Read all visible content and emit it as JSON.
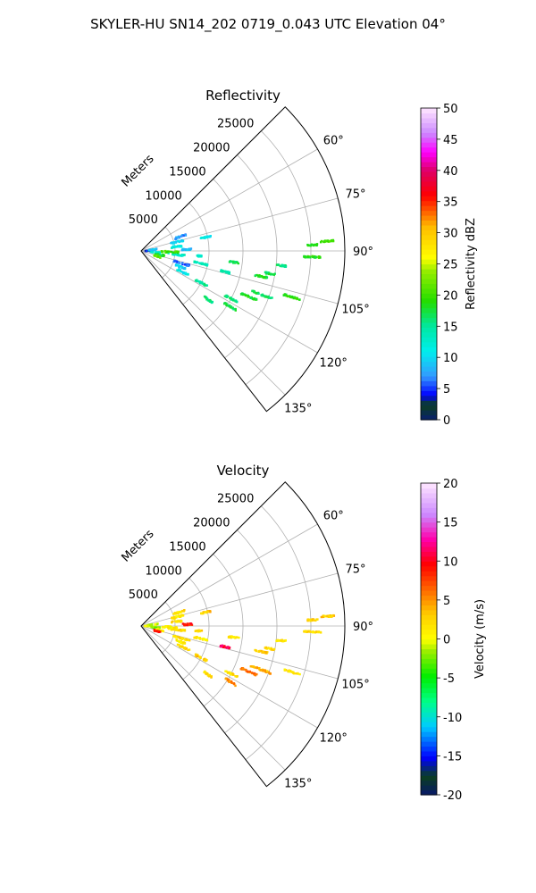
{
  "figure": {
    "suptitle": "SKYLER-HU  SN14_202  0719_0.043 UTC Elevation 04°"
  },
  "chart_data": [
    {
      "type": "heatmap",
      "subtype": "polar-sector",
      "title": "Reflectivity",
      "rlabel": "Meters",
      "r_ticks": [
        "5000",
        "10000",
        "15000",
        "20000",
        "25000"
      ],
      "r_tick_values": [
        5000,
        10000,
        15000,
        20000,
        25000
      ],
      "rlim": [
        0,
        30000
      ],
      "theta_ticks": [
        "60°",
        "75°",
        "90°",
        "105°",
        "120°",
        "135°"
      ],
      "theta_tick_values": [
        60,
        75,
        90,
        105,
        120,
        135
      ],
      "theta_range_deg": [
        45,
        142
      ],
      "grid": true,
      "colorbar": {
        "label": "Reflectivity dBZ",
        "ticks": [
          "0",
          "5",
          "10",
          "15",
          "20",
          "25",
          "30",
          "35",
          "40",
          "45",
          "50"
        ],
        "range": [
          0,
          50
        ],
        "colormap": "NWSRef"
      },
      "clusters": [
        {
          "az": 87,
          "r": [
            26500,
            28500
          ],
          "v": 20
        },
        {
          "az": 92,
          "r": [
            24000,
            26500
          ],
          "v": 19
        },
        {
          "az": 88,
          "r": [
            24500,
            26000
          ],
          "v": 18
        },
        {
          "az": 100,
          "r": [
            18500,
            20000
          ],
          "v": 17
        },
        {
          "az": 102,
          "r": [
            17000,
            19000
          ],
          "v": 18
        },
        {
          "az": 96,
          "r": [
            20000,
            21500
          ],
          "v": 16
        },
        {
          "az": 107,
          "r": [
            22000,
            24500
          ],
          "v": 19
        },
        {
          "az": 110,
          "r": [
            17000,
            20500
          ],
          "v": 17
        },
        {
          "az": 113,
          "r": [
            16000,
            18500
          ],
          "v": 18
        },
        {
          "az": 118,
          "r": [
            14000,
            16000
          ],
          "v": 16
        },
        {
          "az": 122,
          "r": [
            14500,
            16500
          ],
          "v": 17
        },
        {
          "az": 126,
          "r": [
            11500,
            13000
          ],
          "v": 16
        },
        {
          "az": 102,
          "r": [
            8000,
            10000
          ],
          "v": 14
        },
        {
          "az": 107,
          "r": [
            5000,
            7500
          ],
          "v": 6
        },
        {
          "az": 112,
          "r": [
            5500,
            7000
          ],
          "v": 10
        },
        {
          "az": 117,
          "r": [
            6000,
            8000
          ],
          "v": 11
        },
        {
          "az": 118,
          "r": [
            9000,
            11000
          ],
          "v": 15
        },
        {
          "az": 96,
          "r": [
            4000,
            6500
          ],
          "v": 13
        },
        {
          "az": 92,
          "r": [
            3000,
            5500
          ],
          "v": 20
        },
        {
          "az": 83,
          "r": [
            4500,
            6000
          ],
          "v": 12
        },
        {
          "az": 76,
          "r": [
            4500,
            6500
          ],
          "v": 10
        },
        {
          "az": 70,
          "r": [
            5000,
            7000
          ],
          "v": 7
        },
        {
          "az": 78,
          "r": [
            9000,
            10500
          ],
          "v": 11
        },
        {
          "az": 90,
          "r": [
            500,
            1800
          ],
          "v": 4
        },
        {
          "az": 96,
          "r": [
            1500,
            2800
          ],
          "v": 12
        },
        {
          "az": 102,
          "r": [
            2000,
            3500
          ],
          "v": 18
        },
        {
          "az": 84,
          "r": [
            1000,
            2500
          ],
          "v": 9
        },
        {
          "az": 108,
          "r": [
            2000,
            3000
          ],
          "v": 22
        },
        {
          "az": 88,
          "r": [
            6000,
            7500
          ],
          "v": 9
        },
        {
          "az": 95,
          "r": [
            8000,
            9000
          ],
          "v": 12
        },
        {
          "az": 97,
          "r": [
            13000,
            14500
          ],
          "v": 17
        },
        {
          "az": 104,
          "r": [
            12000,
            13500
          ],
          "v": 14
        }
      ]
    },
    {
      "type": "heatmap",
      "subtype": "polar-sector",
      "title": "Velocity",
      "rlabel": "Meters",
      "r_ticks": [
        "5000",
        "10000",
        "15000",
        "20000",
        "25000"
      ],
      "r_tick_values": [
        5000,
        10000,
        15000,
        20000,
        25000
      ],
      "rlim": [
        0,
        30000
      ],
      "theta_ticks": [
        "60°",
        "75°",
        "90°",
        "105°",
        "120°",
        "135°"
      ],
      "theta_tick_values": [
        60,
        75,
        90,
        105,
        120,
        135
      ],
      "theta_range_deg": [
        45,
        142
      ],
      "grid": true,
      "colorbar": {
        "label": "Velocity (m/s)",
        "ticks": [
          "-20",
          "-15",
          "-10",
          "-5",
          "0",
          "5",
          "10",
          "15",
          "20"
        ],
        "range": [
          -20,
          20
        ],
        "colormap": "NWSVel"
      },
      "clusters": [
        {
          "az": 87,
          "r": [
            26500,
            28500
          ],
          "v": 3
        },
        {
          "az": 92,
          "r": [
            24000,
            26500
          ],
          "v": 2
        },
        {
          "az": 88,
          "r": [
            24500,
            26000
          ],
          "v": 3
        },
        {
          "az": 100,
          "r": [
            18500,
            20000
          ],
          "v": 2
        },
        {
          "az": 102,
          "r": [
            17000,
            19000
          ],
          "v": 3
        },
        {
          "az": 96,
          "r": [
            20000,
            21500
          ],
          "v": 2
        },
        {
          "az": 107,
          "r": [
            22000,
            24500
          ],
          "v": 2
        },
        {
          "az": 110,
          "r": [
            17000,
            20500
          ],
          "v": 4
        },
        {
          "az": 113,
          "r": [
            16000,
            18500
          ],
          "v": 6
        },
        {
          "az": 118,
          "r": [
            14000,
            16000
          ],
          "v": 2
        },
        {
          "az": 122,
          "r": [
            14500,
            16500
          ],
          "v": 5
        },
        {
          "az": 126,
          "r": [
            11500,
            13000
          ],
          "v": 2
        },
        {
          "az": 102,
          "r": [
            8000,
            10000
          ],
          "v": 1
        },
        {
          "az": 107,
          "r": [
            5000,
            7500
          ],
          "v": 2
        },
        {
          "az": 112,
          "r": [
            5500,
            7000
          ],
          "v": 1
        },
        {
          "az": 117,
          "r": [
            6000,
            8000
          ],
          "v": 2
        },
        {
          "az": 118,
          "r": [
            9000,
            11000
          ],
          "v": 3
        },
        {
          "az": 96,
          "r": [
            4000,
            6500
          ],
          "v": 2
        },
        {
          "az": 92,
          "r": [
            3000,
            5500
          ],
          "v": 1
        },
        {
          "az": 83,
          "r": [
            4500,
            6000
          ],
          "v": 2
        },
        {
          "az": 76,
          "r": [
            4500,
            6500
          ],
          "v": 1
        },
        {
          "az": 70,
          "r": [
            5000,
            7000
          ],
          "v": 2
        },
        {
          "az": 78,
          "r": [
            9000,
            10500
          ],
          "v": 3
        },
        {
          "az": 90,
          "r": [
            500,
            1800
          ],
          "v": 0
        },
        {
          "az": 96,
          "r": [
            1500,
            2800
          ],
          "v": -2
        },
        {
          "az": 102,
          "r": [
            2000,
            3500
          ],
          "v": 1
        },
        {
          "az": 84,
          "r": [
            1000,
            2500
          ],
          "v": -1
        },
        {
          "az": 108,
          "r": [
            2000,
            3000
          ],
          "v": 9
        },
        {
          "az": 88,
          "r": [
            6000,
            7500
          ],
          "v": 9
        },
        {
          "az": 95,
          "r": [
            8000,
            9000
          ],
          "v": 2
        },
        {
          "az": 97,
          "r": [
            13000,
            14500
          ],
          "v": 2
        },
        {
          "az": 104,
          "r": [
            12000,
            13500
          ],
          "v": 11
        }
      ]
    }
  ]
}
